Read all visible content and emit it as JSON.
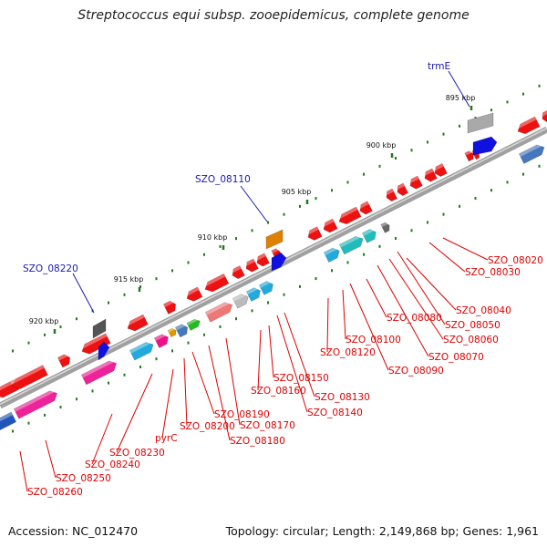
{
  "title": "Streptococcus equi subsp. zooepidemicus, complete genome",
  "footer": {
    "accession": "Accession: NC_012470",
    "topology": "Topology: circular; Length: 2,149,868 bp; Genes: 1,961"
  },
  "colors": {
    "backbone": "#8a8a8a",
    "tick": "#1e7a1e",
    "top_label": "#1a1ab0",
    "bottom_label": "#dd0000"
  },
  "ticks": [
    "895 kbp",
    "900 kbp",
    "905 kbp",
    "910 kbp",
    "915 kbp",
    "920 kbp"
  ],
  "genes_top": [
    {
      "label": "trmE",
      "color": "#a9a9a9",
      "color2": "#1010e0"
    },
    {
      "label": "SZO_08110",
      "color": "#e08000",
      "color2": "#1010e0"
    },
    {
      "label": "SZO_08220",
      "color": "#555555",
      "color2": "#1010e0"
    }
  ],
  "genes_bottom": [
    {
      "label": "SZO_08020"
    },
    {
      "label": "SZO_08030"
    },
    {
      "label": "SZO_08040"
    },
    {
      "label": "SZO_08050"
    },
    {
      "label": "SZO_08060"
    },
    {
      "label": "SZO_08070"
    },
    {
      "label": "SZO_08080"
    },
    {
      "label": "SZO_08090"
    },
    {
      "label": "SZO_08100"
    },
    {
      "label": "SZO_08120"
    },
    {
      "label": "SZO_08130"
    },
    {
      "label": "SZO_08140"
    },
    {
      "label": "SZO_08150"
    },
    {
      "label": "SZO_08160"
    },
    {
      "label": "SZO_08170"
    },
    {
      "label": "SZO_08180"
    },
    {
      "label": "SZO_08190"
    },
    {
      "label": "SZO_08200"
    },
    {
      "label": "pyrC"
    },
    {
      "label": "SZO_08230"
    },
    {
      "label": "SZO_08240"
    },
    {
      "label": "SZO_08250"
    },
    {
      "label": "SZO_08260"
    }
  ]
}
